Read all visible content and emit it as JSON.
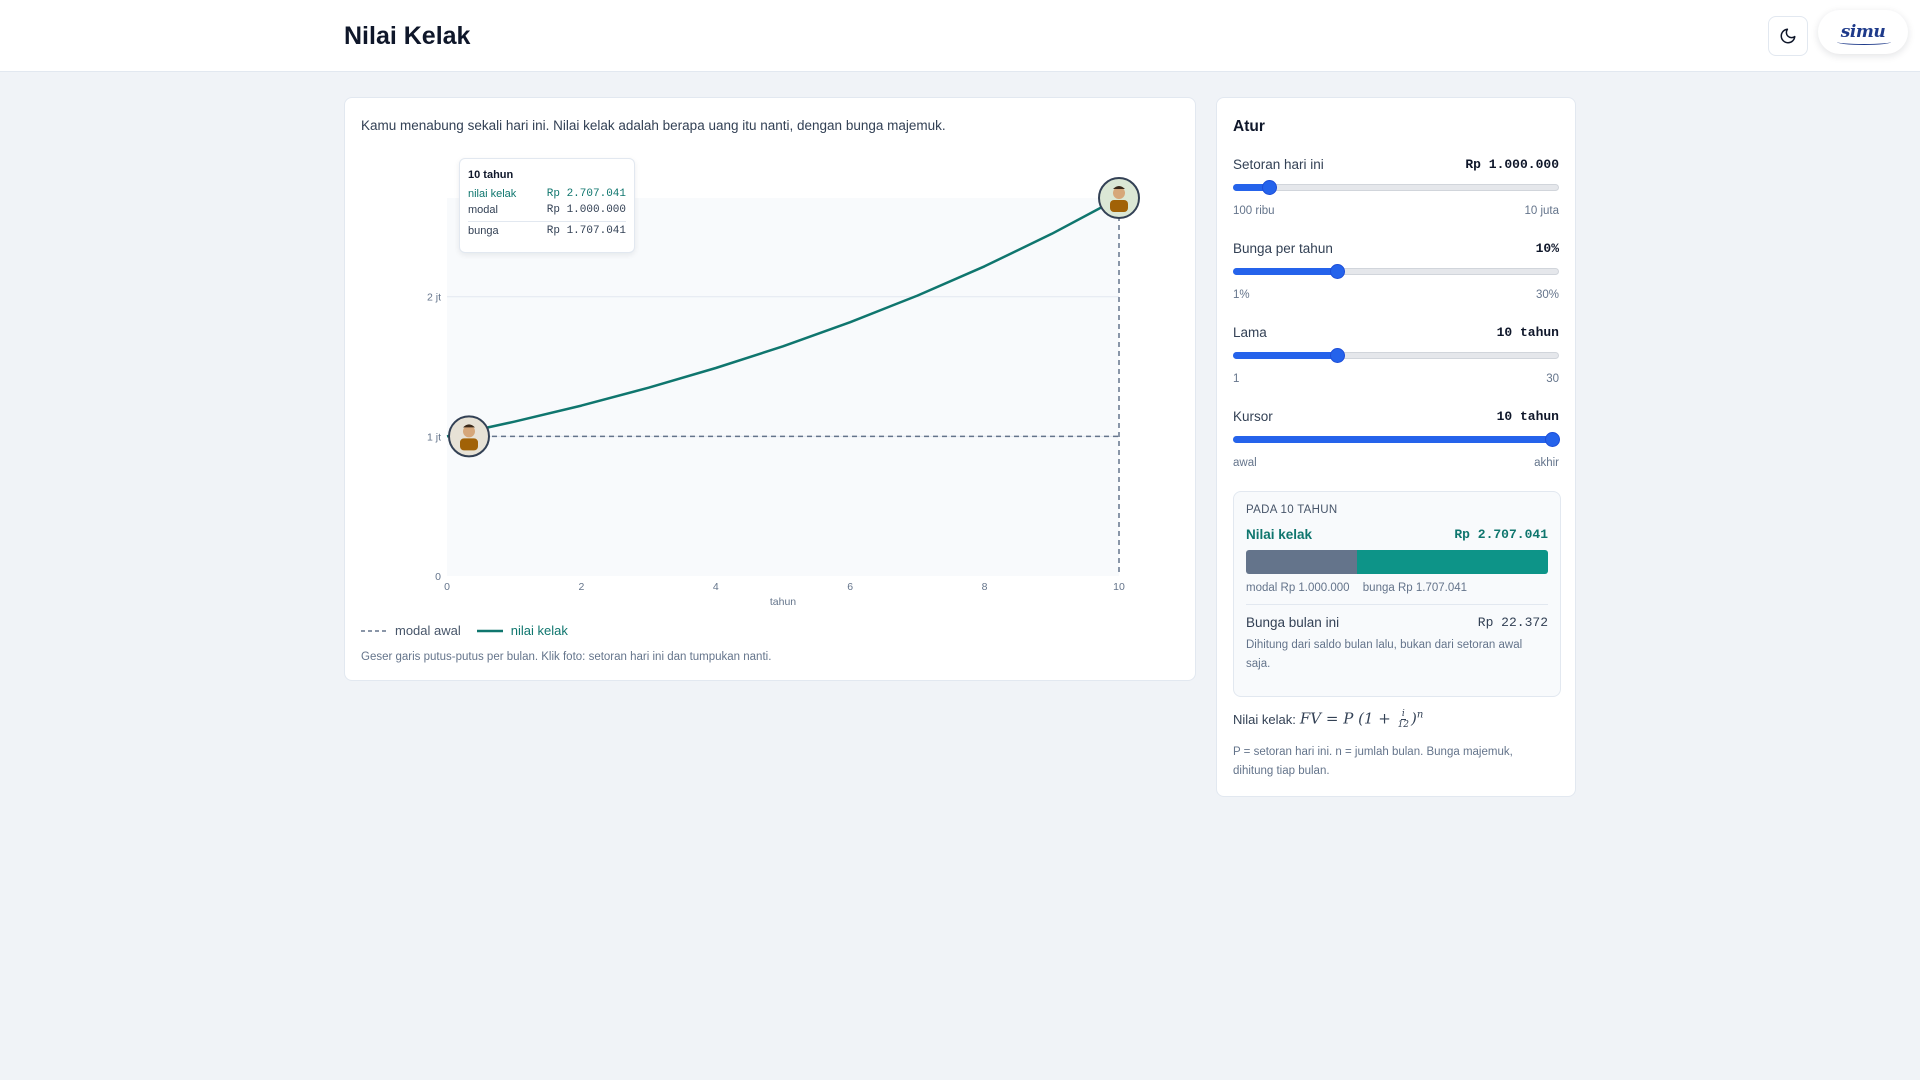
{
  "header": {
    "title": "Nilai Kelak",
    "logo_text": "simu"
  },
  "main": {
    "intro": "Kamu menabung sekali hari ini. Nilai kelak adalah berapa uang itu nanti, dengan bunga majemuk.",
    "tooltip": {
      "title": "10 tahun",
      "rows": [
        {
          "label": "nilai kelak",
          "value": "Rp 2.707.041"
        },
        {
          "label": "modal",
          "value": "Rp 1.000.000"
        },
        {
          "label": "bunga",
          "value": "Rp 1.707.041"
        }
      ]
    },
    "legend": {
      "modal_label": "modal awal",
      "nilai_label": "nilai kelak"
    },
    "hint": "Geser garis putus-putus per bulan. Klik foto: setoran hari ini dan tumpukan nanti."
  },
  "chart_data": {
    "type": "line",
    "xlabel": "tahun",
    "ylabel": "",
    "x_ticks": [
      "0",
      "2",
      "4",
      "6",
      "8",
      "10"
    ],
    "y_ticks": [
      "0",
      "1 jt",
      "2 jt"
    ],
    "xlim": [
      0,
      10
    ],
    "ylim": [
      0,
      2.707041
    ],
    "cursor_year": 10,
    "series": [
      {
        "name": "modal awal",
        "style": "dashed",
        "color": "#64748b",
        "x": [
          0,
          10
        ],
        "y": [
          1,
          1
        ]
      },
      {
        "name": "nilai kelak",
        "style": "solid",
        "color": "#0f766e",
        "x": [
          0,
          1,
          2,
          3,
          4,
          5,
          6,
          7,
          8,
          9,
          10
        ],
        "y": [
          1,
          1.1047,
          1.2204,
          1.3482,
          1.4894,
          1.6453,
          1.8176,
          2.0079,
          2.2182,
          2.4504,
          2.707
        ]
      }
    ]
  },
  "sidebar": {
    "title": "Atur",
    "controls": [
      {
        "label": "Setoran hari ini",
        "value": "Rp 1.000.000",
        "min_label": "100 ribu",
        "max_label": "10 juta",
        "position": 0.11
      },
      {
        "label": "Bunga per tahun",
        "value": "10%",
        "min_label": "1%",
        "max_label": "30%",
        "position": 0.32
      },
      {
        "label": "Lama",
        "value": "10 tahun",
        "min_label": "1",
        "max_label": "30",
        "position": 0.32
      },
      {
        "label": "Kursor",
        "value": "10 tahun",
        "min_label": "awal",
        "max_label": "akhir",
        "position": 1.0
      }
    ],
    "result": {
      "title": "PADA 10 TAHUN",
      "nilai_label": "Nilai kelak",
      "nilai_value": "Rp 2.707.041",
      "modal_share": 0.369,
      "modal_caption": "modal Rp 1.000.000",
      "bunga_caption": "bunga Rp 1.707.041",
      "bunga_bulan_label": "Bunga bulan ini",
      "bunga_bulan_value": "Rp 22.372",
      "note": "Dihitung dari saldo bulan lalu, bukan dari setoran awal saja."
    },
    "formula_label": "Nilai kelak:",
    "formula_note": "P = setoran hari ini. n = jumlah bulan. Bunga majemuk, dihitung tiap bulan."
  },
  "colors": {
    "accent": "#2563eb",
    "teal": "#0f766e",
    "slate": "#64748b"
  }
}
